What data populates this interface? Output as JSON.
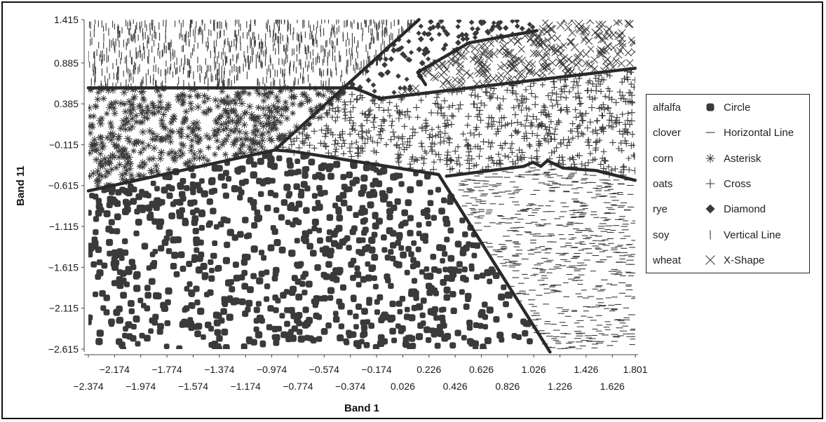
{
  "colors": {
    "marker": "#3a3a3a",
    "boundary": "#2a2a2a",
    "frame": "#111111"
  },
  "chart_data": {
    "type": "scatter",
    "title": "",
    "xlabel": "Band 1",
    "ylabel": "Band 11",
    "xlim": [
      -2.374,
      1.801
    ],
    "ylim": [
      -2.615,
      1.415
    ],
    "x_ticks_upper": [
      "-2.174",
      "-1.774",
      "-1.374",
      "-0.974",
      "-0.574",
      "-0.174",
      "0.226",
      "0.626",
      "1.026",
      "1.426",
      "1.801"
    ],
    "x_ticks_lower": [
      "-2.374",
      "-1.974",
      "-1.574",
      "-1.174",
      "-0.774",
      "-0.374",
      "0.026",
      "0.426",
      "0.826",
      "1.226",
      "1.626"
    ],
    "y_ticks": [
      "1.415",
      "0.885",
      "0.385",
      "-0.115",
      "-0.615",
      "-1.115",
      "-1.615",
      "-2.115",
      "-2.615"
    ],
    "legend": [
      {
        "class": "alfalfa",
        "marker": "circle",
        "shape_label": "Circle"
      },
      {
        "class": "clover",
        "marker": "hline",
        "shape_label": "Horizontal Line"
      },
      {
        "class": "corn",
        "marker": "asterisk",
        "shape_label": "Asterisk"
      },
      {
        "class": "oats",
        "marker": "cross",
        "shape_label": "Cross"
      },
      {
        "class": "rye",
        "marker": "diamond",
        "shape_label": "Diamond"
      },
      {
        "class": "soy",
        "marker": "vline",
        "shape_label": "Vertical Line"
      },
      {
        "class": "wheat",
        "marker": "xshape",
        "shape_label": "X-Shape"
      }
    ],
    "regions": [
      {
        "class": "soy",
        "marker": "vline",
        "polygon": [
          [
            -2.374,
            1.415
          ],
          [
            0.15,
            1.415
          ],
          [
            -0.35,
            0.58
          ],
          [
            -2.374,
            0.58
          ]
        ]
      },
      {
        "class": "corn",
        "marker": "asterisk",
        "polygon": [
          [
            -2.374,
            0.58
          ],
          [
            -0.35,
            0.58
          ],
          [
            -0.95,
            -0.18
          ],
          [
            -2.374,
            -0.68
          ]
        ]
      },
      {
        "class": "rye",
        "marker": "diamond",
        "polygon": [
          [
            0.15,
            1.415
          ],
          [
            1.1,
            1.415
          ],
          [
            1.05,
            1.28
          ],
          [
            0.53,
            1.13
          ],
          [
            0.14,
            0.77
          ],
          [
            0.2,
            0.62
          ],
          [
            -0.15,
            0.45
          ],
          [
            -0.35,
            0.53
          ],
          [
            -0.95,
            -0.18
          ]
        ]
      },
      {
        "class": "wheat",
        "marker": "xshape",
        "polygon": [
          [
            1.1,
            1.415
          ],
          [
            1.8,
            1.415
          ],
          [
            1.8,
            0.82
          ],
          [
            -0.15,
            0.45
          ],
          [
            0.2,
            0.62
          ],
          [
            0.14,
            0.77
          ],
          [
            0.53,
            1.13
          ],
          [
            1.05,
            1.28
          ]
        ]
      },
      {
        "class": "oats",
        "marker": "cross",
        "polygon": [
          [
            -0.35,
            0.53
          ],
          [
            -0.15,
            0.45
          ],
          [
            1.8,
            0.82
          ],
          [
            1.8,
            -0.55
          ],
          [
            1.35,
            -0.42
          ],
          [
            1.0,
            -0.36
          ],
          [
            0.36,
            -0.48
          ],
          [
            0.3,
            -0.48
          ],
          [
            -0.95,
            -0.18
          ]
        ]
      },
      {
        "class": "alfalfa",
        "marker": "circle",
        "polygon": [
          [
            -2.374,
            -0.68
          ],
          [
            -0.95,
            -0.18
          ],
          [
            -0.8,
            -0.22
          ],
          [
            0.3,
            -0.48
          ],
          [
            1.1,
            -2.615
          ],
          [
            -2.374,
            -2.615
          ]
        ]
      },
      {
        "class": "clover",
        "marker": "hline",
        "polygon": [
          [
            0.36,
            -0.5
          ],
          [
            1.0,
            -0.38
          ],
          [
            1.35,
            -0.44
          ],
          [
            1.8,
            -0.56
          ],
          [
            1.8,
            -2.615
          ],
          [
            1.12,
            -2.615
          ]
        ]
      }
    ],
    "boundaries": [
      [
        [
          -2.374,
          0.58
        ],
        [
          -0.35,
          0.58
        ],
        [
          -0.25,
          0.52
        ],
        [
          -0.15,
          0.45
        ],
        [
          1.8,
          0.82
        ]
      ],
      [
        [
          -0.95,
          -0.18
        ],
        [
          0.15,
          1.415
        ]
      ],
      [
        [
          0.2,
          0.62
        ],
        [
          0.14,
          0.77
        ],
        [
          0.53,
          1.13
        ],
        [
          1.05,
          1.28
        ]
      ],
      [
        [
          -2.374,
          -0.68
        ],
        [
          -0.95,
          -0.18
        ],
        [
          -0.8,
          -0.2
        ],
        [
          0.3,
          -0.48
        ],
        [
          1.15,
          -2.65
        ]
      ],
      [
        [
          0.36,
          -0.5
        ],
        [
          0.95,
          -0.38
        ],
        [
          1.02,
          -0.33
        ],
        [
          1.08,
          -0.38
        ],
        [
          1.13,
          -0.31
        ],
        [
          1.25,
          -0.4
        ],
        [
          1.5,
          -0.43
        ],
        [
          1.8,
          -0.55
        ]
      ]
    ]
  }
}
